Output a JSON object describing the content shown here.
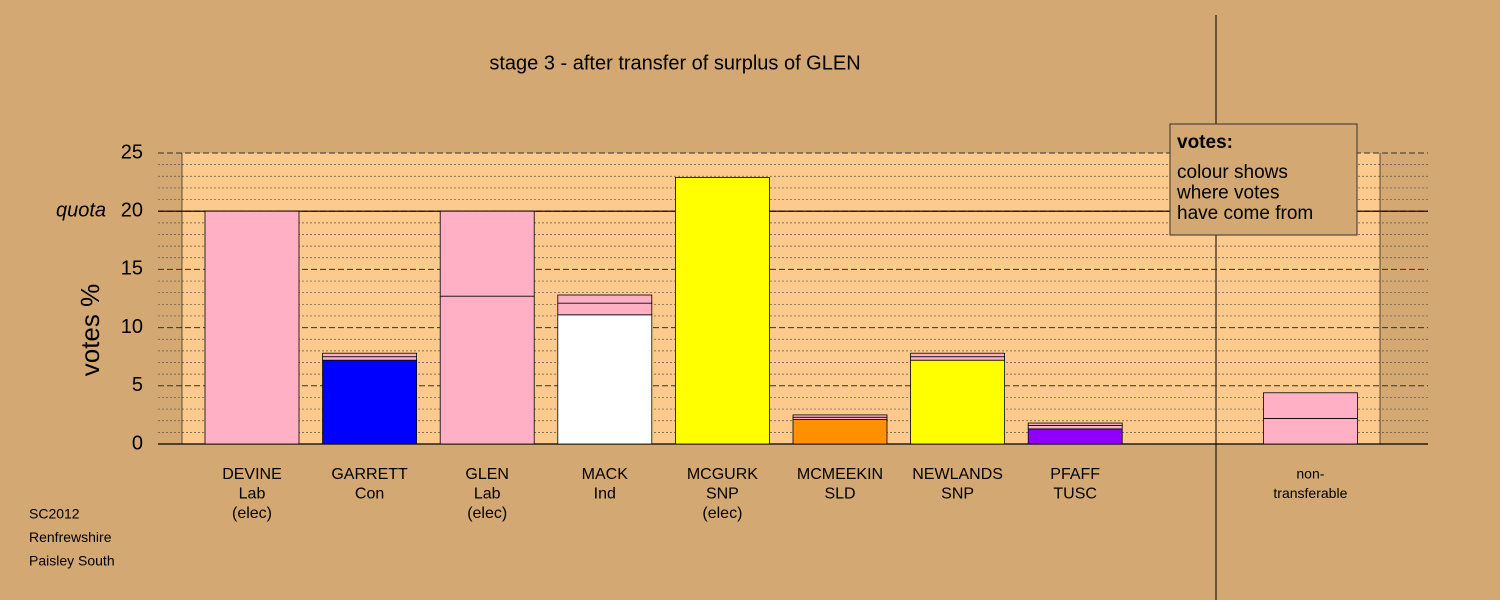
{
  "chart_data": {
    "type": "stacked-bar",
    "title": "stage 3 - after transfer of surplus of GLEN",
    "y_label": "votes %",
    "quota_label": "quota",
    "quota": 20,
    "ylim": [
      0,
      25
    ],
    "yticks": [
      0,
      5,
      10,
      15,
      20,
      25
    ],
    "minor_yticks": [
      1,
      2,
      3,
      4,
      6,
      7,
      8,
      9,
      11,
      12,
      13,
      14,
      16,
      17,
      18,
      19,
      21,
      22,
      23,
      24
    ],
    "categories": [
      [
        "DEVINE",
        "Lab",
        "(elec)"
      ],
      [
        "GARRETT",
        "Con"
      ],
      [
        "GLEN",
        "Lab",
        "(elec)"
      ],
      [
        "MACK",
        "Ind"
      ],
      [
        "MCGURK",
        "SNP",
        "(elec)"
      ],
      [
        "MCMEEKIN",
        "SLD"
      ],
      [
        "NEWLANDS",
        "SNP"
      ],
      [
        "PFAFF",
        "TUSC"
      ],
      null,
      [
        "non-",
        "transferable"
      ]
    ],
    "stacks": [
      [
        {
          "value": 20,
          "color": "#ffb0c4"
        }
      ],
      [
        {
          "value": 7.2,
          "color": "#0000ff"
        },
        {
          "value": 0.3,
          "color": "#ffb0c4"
        },
        {
          "value": 0.3,
          "color": "#ffb0c4"
        }
      ],
      [
        {
          "value": 12.7,
          "color": "#ffb0c4"
        },
        {
          "value": 7.3,
          "color": "#ffb0c4"
        }
      ],
      [
        {
          "value": 11.1,
          "color": "#ffffff"
        },
        {
          "value": 1.0,
          "color": "#ffb0c4"
        },
        {
          "value": 0.7,
          "color": "#ffb0c4"
        }
      ],
      [
        {
          "value": 22.9,
          "color": "#ffff00"
        }
      ],
      [
        {
          "value": 2.1,
          "color": "#ff9000"
        },
        {
          "value": 0.2,
          "color": "#ffb0c4"
        },
        {
          "value": 0.2,
          "color": "#ffb0c4"
        }
      ],
      [
        {
          "value": 7.2,
          "color": "#ffff00"
        },
        {
          "value": 0.3,
          "color": "#ffb0c4"
        },
        {
          "value": 0.3,
          "color": "#ffb0c4"
        }
      ],
      [
        {
          "value": 1.3,
          "color": "#9000ff"
        },
        {
          "value": 0.3,
          "color": "#ffb0c4"
        },
        {
          "value": 0.2,
          "color": "#ffb0c4"
        }
      ],
      [],
      [
        {
          "value": 2.2,
          "color": "#ffb0c4"
        },
        {
          "value": 2.2,
          "color": "#ffb0c4"
        }
      ]
    ],
    "legend": {
      "title": "votes:",
      "lines": [
        "colour shows",
        "where votes",
        "have come from"
      ]
    },
    "footnote": [
      "SC2012",
      "Renfrewshire",
      "Paisley South"
    ]
  }
}
